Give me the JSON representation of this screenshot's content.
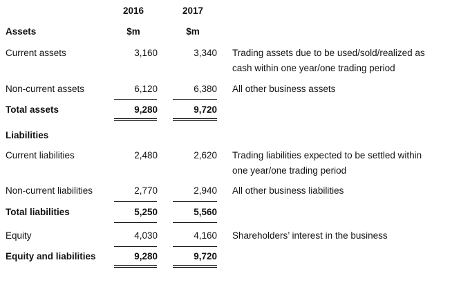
{
  "header": {
    "year_2016": "2016",
    "year_2017": "2017",
    "unit_2016": "$m",
    "unit_2017": "$m"
  },
  "assets_heading": "Assets",
  "rows": {
    "current_assets": {
      "label": "Current assets",
      "v2016": "3,160",
      "v2017": "3,340",
      "desc_line1": "Trading assets due to be used/sold/realized as",
      "desc_line2": "cash within one year/one trading period"
    },
    "non_current_assets": {
      "label": "Non-current assets",
      "v2016": "6,120",
      "v2017": "6,380",
      "desc_line1": "All other business assets"
    },
    "total_assets": {
      "label": "Total assets",
      "v2016": "9,280",
      "v2017": "9,720"
    },
    "current_liabilities": {
      "label": "Current liabilities",
      "v2016": "2,480",
      "v2017": "2,620",
      "desc_line1": "Trading liabilities expected to be settled within",
      "desc_line2": "one year/one trading period"
    },
    "non_current_liabilities": {
      "label": "Non-current liabilities",
      "v2016": "2,770",
      "v2017": "2,940",
      "desc_line1": "All other business liabilities"
    },
    "total_liabilities": {
      "label": "Total liabilities",
      "v2016": "5,250",
      "v2017": "5,560"
    },
    "equity": {
      "label": "Equity",
      "v2016": "4,030",
      "v2017": "4,160",
      "desc_line1": "Shareholders’ interest in the business"
    },
    "equity_and_liabilities": {
      "label": "Equity and liabilities",
      "v2016": "9,280",
      "v2017": "9,720"
    }
  },
  "liabilities_heading": "Liabilities"
}
